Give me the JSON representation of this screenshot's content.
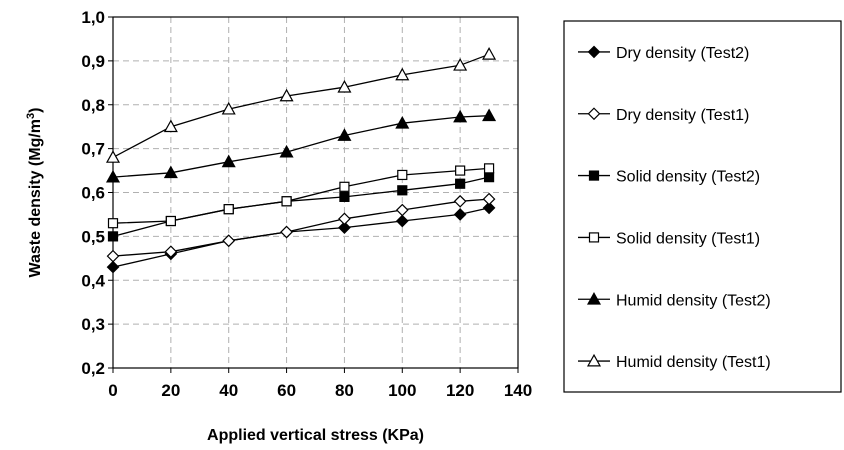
{
  "chart_data": {
    "type": "line",
    "title": "",
    "xlabel": "Applied vertical stress (KPa)",
    "ylabel": "Waste density (Mg/m3)",
    "ylabel_parts": {
      "main": "Waste density (Mg/m",
      "sup": "3",
      "close": ")"
    },
    "xlim": [
      0,
      140
    ],
    "ylim": [
      0.2,
      1.0
    ],
    "x_ticks": [
      "0",
      "20",
      "40",
      "60",
      "80",
      "100",
      "120",
      "140"
    ],
    "y_ticks": [
      "0,2",
      "0,3",
      "0,4",
      "0,5",
      "0,6",
      "0,7",
      "0,8",
      "0,9",
      "1,0"
    ],
    "grid": true,
    "legend_position": "right",
    "colors": {
      "line": "#000000",
      "grid": "#b0b0b0",
      "background": "#ffffff"
    },
    "series": [
      {
        "name": "Dry density (Test2)",
        "marker": "diamond-filled",
        "x": [
          0,
          20,
          40,
          60,
          80,
          100,
          120,
          130
        ],
        "y": [
          0.43,
          0.46,
          0.49,
          0.51,
          0.52,
          0.535,
          0.55,
          0.565
        ]
      },
      {
        "name": "Dry density (Test1)",
        "marker": "diamond-open",
        "x": [
          0,
          20,
          40,
          60,
          80,
          100,
          120,
          130
        ],
        "y": [
          0.455,
          0.465,
          0.49,
          0.51,
          0.54,
          0.56,
          0.58,
          0.585
        ]
      },
      {
        "name": "Solid density (Test2)",
        "marker": "square-filled",
        "x": [
          0,
          20,
          40,
          60,
          80,
          100,
          120,
          130
        ],
        "y": [
          0.5,
          0.535,
          0.562,
          0.58,
          0.59,
          0.605,
          0.62,
          0.635
        ]
      },
      {
        "name": "Solid density (Test1)",
        "marker": "square-open",
        "x": [
          0,
          20,
          40,
          60,
          80,
          100,
          120,
          130
        ],
        "y": [
          0.53,
          0.535,
          0.562,
          0.58,
          0.613,
          0.64,
          0.65,
          0.655
        ]
      },
      {
        "name": "Humid density (Test2)",
        "marker": "triangle-filled",
        "x": [
          0,
          20,
          40,
          60,
          80,
          100,
          120,
          130
        ],
        "y": [
          0.635,
          0.645,
          0.67,
          0.692,
          0.73,
          0.758,
          0.772,
          0.775
        ]
      },
      {
        "name": "Humid density (Test1)",
        "marker": "triangle-open",
        "x": [
          0,
          20,
          40,
          60,
          80,
          100,
          120,
          130
        ],
        "y": [
          0.68,
          0.75,
          0.79,
          0.82,
          0.84,
          0.868,
          0.89,
          0.915
        ]
      }
    ]
  }
}
